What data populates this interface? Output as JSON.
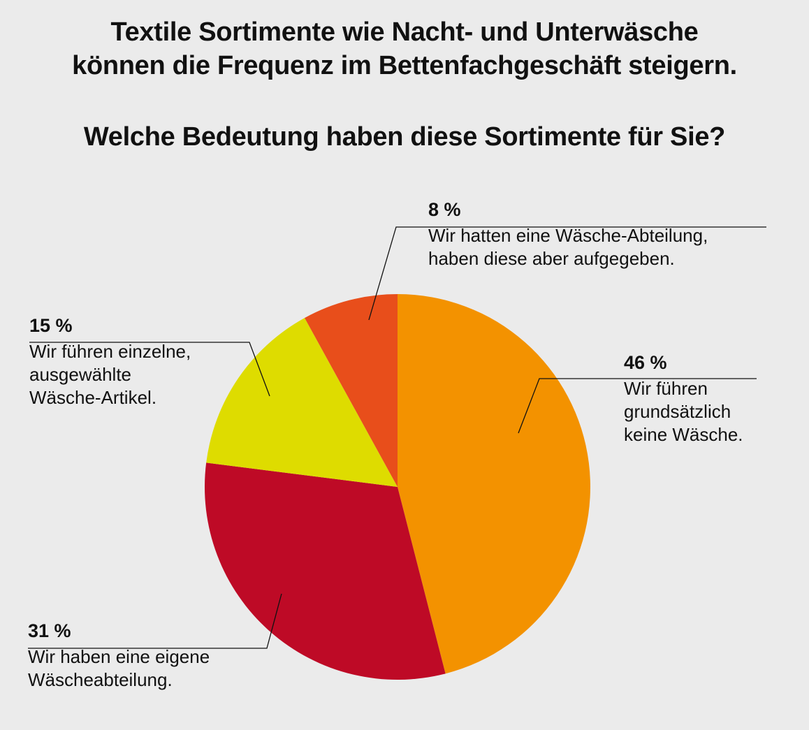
{
  "title_lines": [
    "Textile Sortimente wie Nacht- und Unterwäsche",
    "können die Frequenz im Bettenfachgeschäft steigern."
  ],
  "question": "Welche Bedeutung haben diese Sortimente für Sie?",
  "chart_data": {
    "type": "pie",
    "slices": [
      {
        "value": 46,
        "label_pct": "46 %",
        "label_lines": [
          "Wir führen",
          "grundsätzlich",
          "keine Wäsche."
        ],
        "color": "#f39200"
      },
      {
        "value": 31,
        "label_pct": "31 %",
        "label_lines": [
          "Wir haben eine eigene",
          "Wäscheabteilung."
        ],
        "color": "#be0a26"
      },
      {
        "value": 15,
        "label_pct": "15 %",
        "label_lines": [
          "Wir führen einzelne,",
          "ausgewählte",
          "Wäsche-Artikel."
        ],
        "color": "#dedc00"
      },
      {
        "value": 8,
        "label_pct": "8 %",
        "label_lines": [
          "Wir hatten eine Wäsche-Abteilung,",
          "haben diese aber aufgegeben."
        ],
        "color": "#e84e1b"
      }
    ]
  }
}
